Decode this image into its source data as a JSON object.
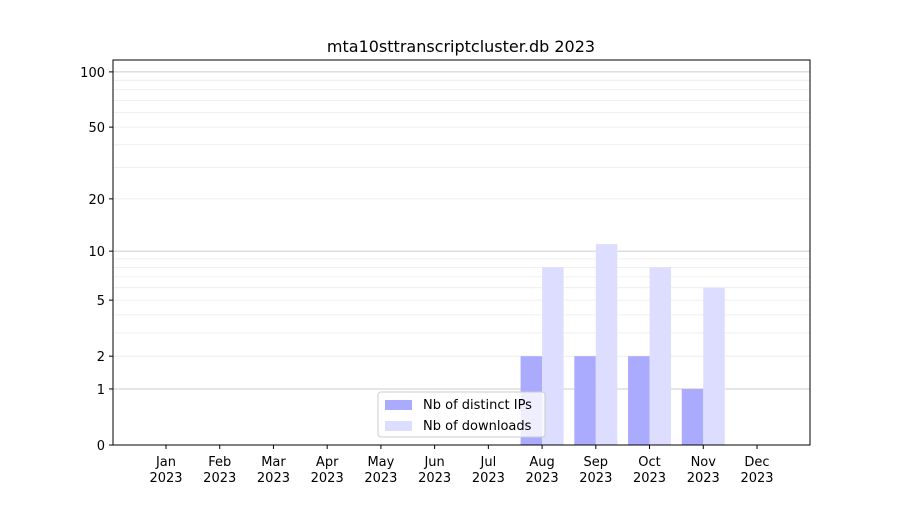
{
  "chart_data": {
    "type": "bar",
    "title": "mta10sttranscriptcluster.db 2023",
    "xlabel": "",
    "ylabel": "",
    "y_scale": "symlog",
    "ylim": [
      0,
      116
    ],
    "yticks": [
      0,
      1,
      2,
      5,
      10,
      20,
      50,
      100
    ],
    "grid": true,
    "legend_position": "lower-center",
    "categories": [
      "Jan\n2023",
      "Feb\n2023",
      "Mar\n2023",
      "Apr\n2023",
      "May\n2023",
      "Jun\n2023",
      "Jul\n2023",
      "Aug\n2023",
      "Sep\n2023",
      "Oct\n2023",
      "Nov\n2023",
      "Dec\n2023"
    ],
    "series": [
      {
        "name": "Nb of distinct IPs",
        "color": "#aaaaff",
        "values": [
          0,
          0,
          0,
          0,
          0,
          0,
          0,
          2,
          2,
          2,
          1,
          0
        ]
      },
      {
        "name": "Nb of downloads",
        "color": "#ddddff",
        "values": [
          0,
          0,
          0,
          0,
          0,
          0,
          0,
          8,
          11,
          8,
          6,
          0
        ]
      }
    ]
  }
}
